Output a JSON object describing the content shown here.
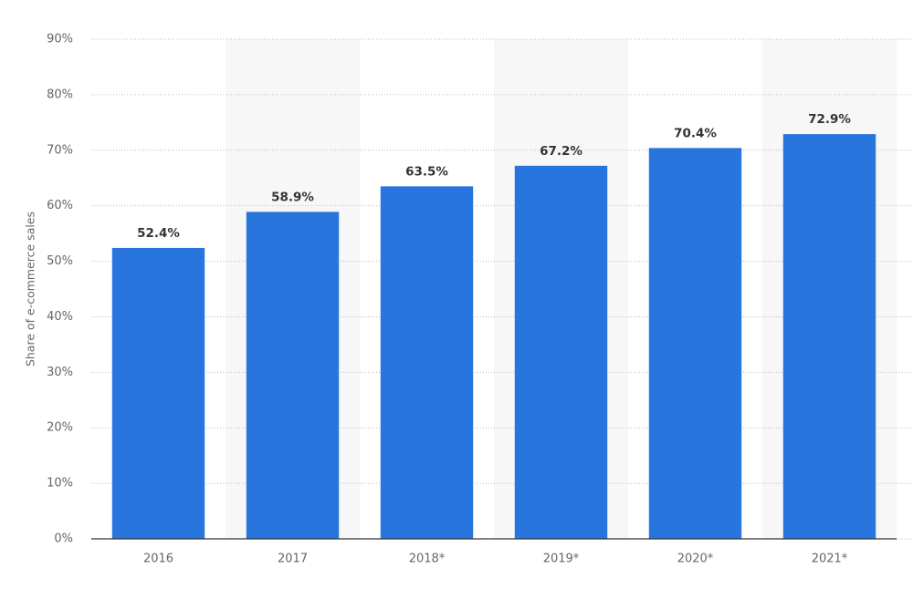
{
  "chart_data": {
    "type": "bar",
    "y_label": "Share of e-commerce sales",
    "categories": [
      "2016",
      "2017",
      "2018*",
      "2019*",
      "2020*",
      "2021*"
    ],
    "values": [
      52.4,
      58.9,
      63.5,
      67.2,
      70.4,
      72.9
    ],
    "value_labels": [
      "52.4%",
      "58.9%",
      "63.5%",
      "67.2%",
      "70.4%",
      "72.9%"
    ],
    "color": "#2876dd",
    "ylim": [
      0,
      90
    ],
    "yticks": [
      {
        "value": 0,
        "label": "0%"
      },
      {
        "value": 10,
        "label": "10%"
      },
      {
        "value": 20,
        "label": "20%"
      },
      {
        "value": 30,
        "label": "30%"
      },
      {
        "value": 40,
        "label": "40%"
      },
      {
        "value": 50,
        "label": "50%"
      },
      {
        "value": 60,
        "label": "60%"
      },
      {
        "value": 70,
        "label": "70%"
      },
      {
        "value": 80,
        "label": "80%"
      },
      {
        "value": 90,
        "label": "90%"
      }
    ],
    "grid": true
  }
}
